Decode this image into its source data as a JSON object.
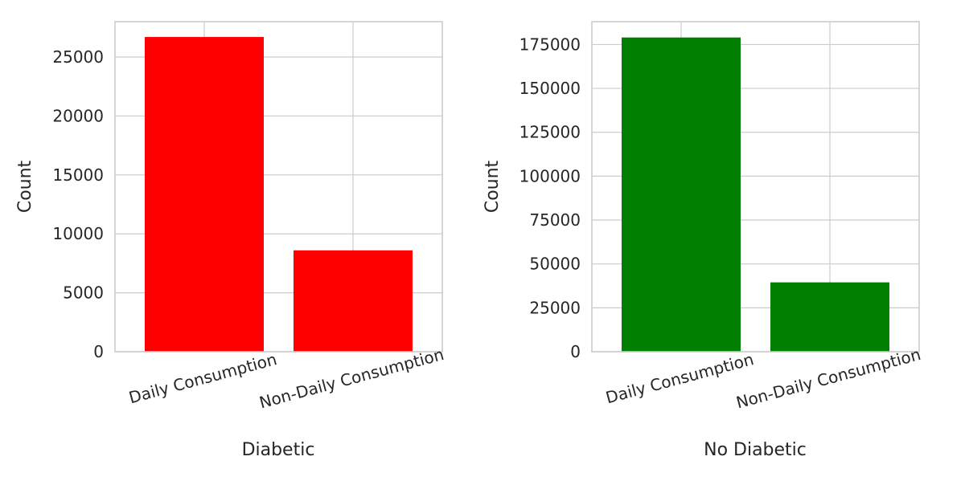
{
  "chart_data": [
    {
      "type": "bar",
      "categories": [
        "Daily Consumption",
        "Non-Daily Consumption"
      ],
      "values": [
        26700,
        8600
      ],
      "color": "#ff0000",
      "title": "",
      "xlabel": "Diabetic",
      "ylabel": "Count",
      "ylim": [
        0,
        28000
      ],
      "yticks": [
        0,
        5000,
        10000,
        15000,
        20000,
        25000
      ],
      "grid": true
    },
    {
      "type": "bar",
      "categories": [
        "Daily Consumption",
        "Non-Daily Consumption"
      ],
      "values": [
        179000,
        39500
      ],
      "color": "#008000",
      "title": "",
      "xlabel": "No Diabetic",
      "ylabel": "Count",
      "ylim": [
        0,
        188000
      ],
      "yticks": [
        0,
        25000,
        50000,
        75000,
        100000,
        125000,
        150000,
        175000
      ],
      "grid": true
    }
  ]
}
